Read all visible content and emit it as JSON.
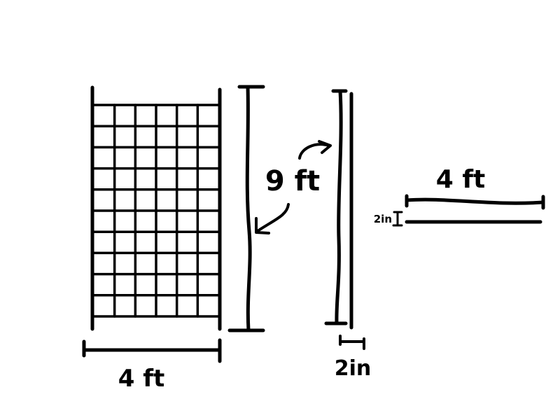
{
  "colors": {
    "ink": "#000000",
    "background": "#ffffff"
  },
  "grid_panel": {
    "rows": 10,
    "cols": 6,
    "width_label": "4 ft",
    "height_label": "9 ft"
  },
  "side_view": {
    "thickness_label": "2in"
  },
  "top_view": {
    "length_label": "4 ft",
    "thickness_label": "2in"
  }
}
